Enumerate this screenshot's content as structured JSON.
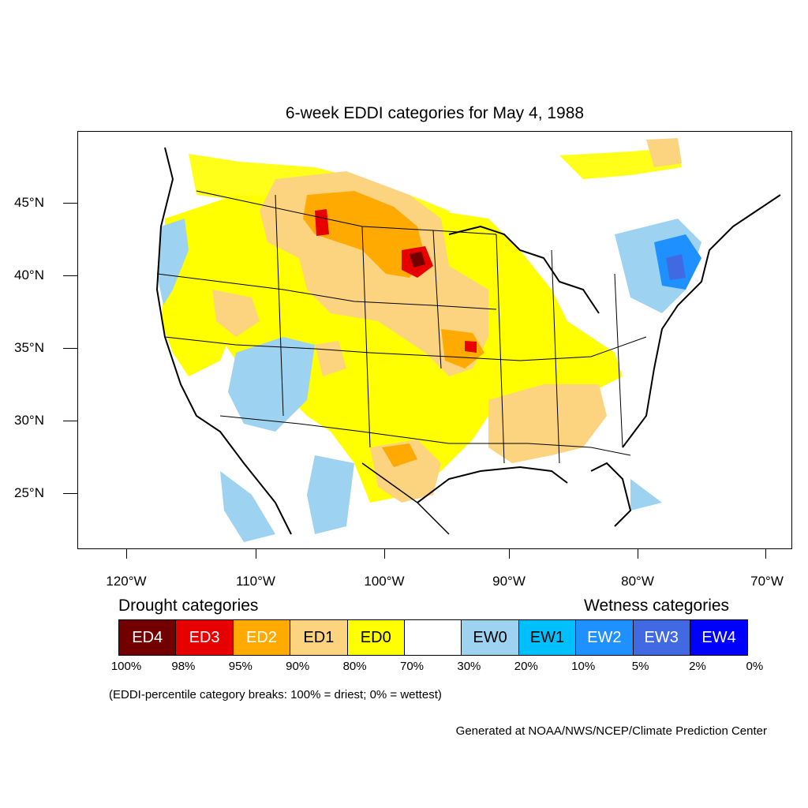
{
  "title": "6-week EDDI categories for May 4, 1988",
  "axes": {
    "lat_labels": [
      "45°N",
      "40°N",
      "35°N",
      "30°N",
      "25°N"
    ],
    "lon_labels": [
      "120°W",
      "110°W",
      "100°W",
      "90°W",
      "80°W",
      "70°W"
    ]
  },
  "legend": {
    "drought_heading": "Drought categories",
    "wetness_heading": "Wetness categories",
    "categories": [
      {
        "label": "ED4",
        "color": "#730000",
        "text_color": "#ffffff"
      },
      {
        "label": "ED3",
        "color": "#e60000",
        "text_color": "#ffffff"
      },
      {
        "label": "ED2",
        "color": "#ffaa00",
        "text_color": "#ffffff"
      },
      {
        "label": "ED1",
        "color": "#fcd37f",
        "text_color": "#000000"
      },
      {
        "label": "ED0",
        "color": "#ffff00",
        "text_color": "#000000"
      },
      {
        "label": "",
        "color": "#ffffff",
        "text_color": "#000000"
      },
      {
        "label": "EW0",
        "color": "#9dd2f0",
        "text_color": "#000000"
      },
      {
        "label": "EW1",
        "color": "#00bfff",
        "text_color": "#000000"
      },
      {
        "label": "EW2",
        "color": "#1e90ff",
        "text_color": "#ffffff"
      },
      {
        "label": "EW3",
        "color": "#4169e1",
        "text_color": "#ffffff"
      },
      {
        "label": "EW4",
        "color": "#0000ff",
        "text_color": "#ffffff"
      }
    ],
    "breaks": [
      "100%",
      "98%",
      "95%",
      "90%",
      "80%",
      "70%",
      "30%",
      "20%",
      "10%",
      "5%",
      "2%",
      "0%"
    ],
    "note": "(EDDI-percentile category breaks: 100% = driest; 0% = wettest)"
  },
  "credit": "Generated at NOAA/NWS/NCEP/Climate Prediction Center"
}
